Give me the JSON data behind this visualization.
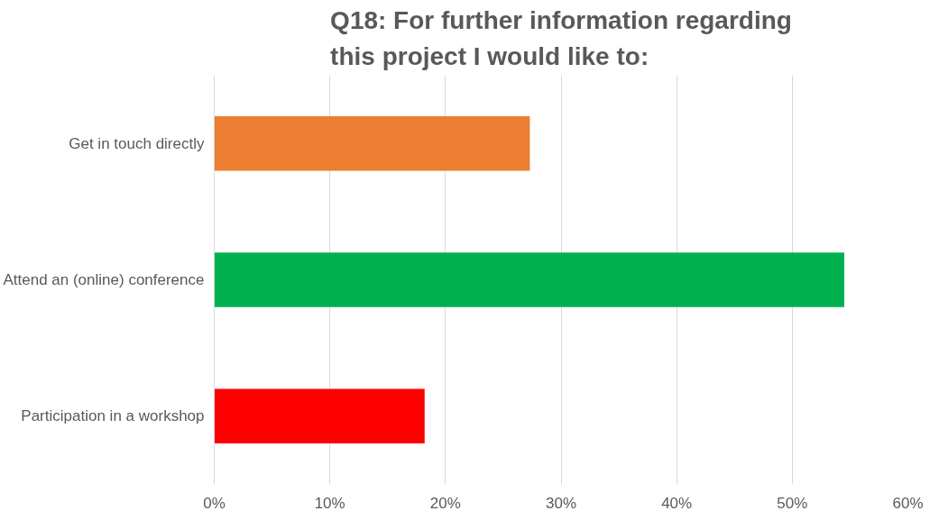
{
  "chart_data": {
    "type": "bar",
    "orientation": "horizontal",
    "title": "Q18: For further information regarding this project I would like to:",
    "categories": [
      "Get in touch directly",
      "Attend an (online) conference",
      "Participation in a workshop"
    ],
    "values": [
      27.3,
      54.5,
      18.2
    ],
    "colors": [
      "#ed7d31",
      "#00b050",
      "#ff0000"
    ],
    "xlim": [
      0,
      60
    ],
    "xticks": [
      {
        "value": 0,
        "label": "0%"
      },
      {
        "value": 10,
        "label": "10%"
      },
      {
        "value": 20,
        "label": "20%"
      },
      {
        "value": 30,
        "label": "30%"
      },
      {
        "value": 40,
        "label": "40%"
      },
      {
        "value": 50,
        "label": "50%"
      },
      {
        "value": 60,
        "label": "60%"
      }
    ],
    "grid": "x"
  }
}
